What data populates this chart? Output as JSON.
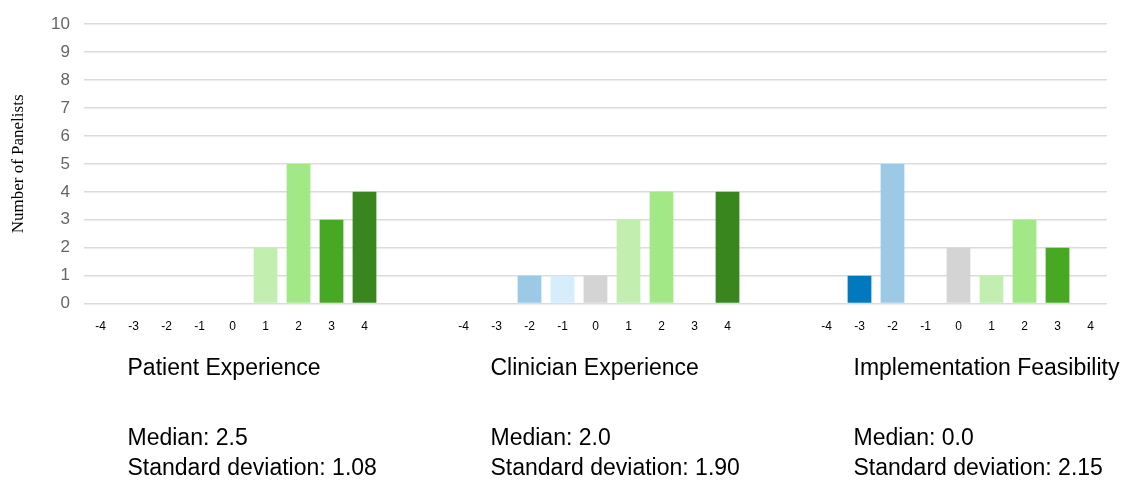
{
  "chart_data": {
    "type": "bar",
    "ylabel": "Number of Panelists",
    "categories": [
      "-4",
      "-3",
      "-2",
      "-1",
      "0",
      "1",
      "2",
      "3",
      "4",
      null,
      null,
      "-4",
      "-3",
      "-2",
      "-1",
      "0",
      "1",
      "2",
      "3",
      "4",
      null,
      null,
      "-4",
      "-3",
      "-2",
      "-1",
      "0",
      "1",
      "2",
      "3",
      "4"
    ],
    "values": [
      0,
      0,
      0,
      0,
      0,
      2,
      5,
      3,
      4,
      null,
      null,
      0,
      0,
      1,
      1,
      1,
      3,
      4,
      0,
      4,
      null,
      null,
      0,
      1,
      5,
      0,
      2,
      1,
      3,
      2,
      0
    ],
    "colors": [
      "#005a8c",
      "#0079be",
      "#9ccae6",
      "#d6edfc",
      "#d4d4d4",
      "#c2eeb0",
      "#a2e887",
      "#46a823",
      "#39861e",
      null,
      null,
      "#005a8c",
      "#0079be",
      "#9ccae6",
      "#d6edfc",
      "#d4d4d4",
      "#c2eeb0",
      "#a2e887",
      "#46a823",
      "#39861e",
      null,
      null,
      "#005a8c",
      "#0079be",
      "#9ccae6",
      "#d6edfc",
      "#d4d4d4",
      "#c2eeb0",
      "#a2e887",
      "#46a823",
      "#39861e"
    ],
    "ylim": [
      0,
      10
    ],
    "yticks": [
      0,
      1,
      2,
      3,
      4,
      5,
      6,
      7,
      8,
      9,
      10
    ],
    "grid": "y",
    "legend": false,
    "annotations": [
      "Patient Experience",
      "Median: 2.5",
      "Standard deviation: 1.08",
      "Clinician Experience",
      "Median: 2.0",
      "Standard deviation: 1.90",
      "Implementation Feasibility",
      "Median: 0.0",
      "Standard deviation: 2.15"
    ]
  }
}
